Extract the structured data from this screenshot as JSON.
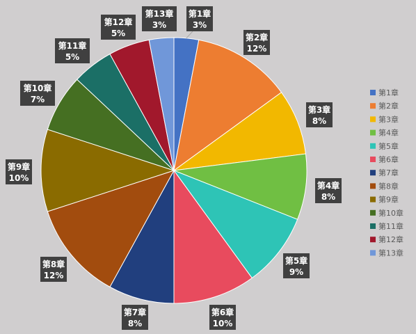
{
  "chart_data": {
    "type": "pie",
    "title": "",
    "categories": [
      "第1章",
      "第2章",
      "第3章",
      "第4章",
      "第5章",
      "第6章",
      "第7章",
      "第8章",
      "第9章",
      "第10章",
      "第11章",
      "第12章",
      "第13章"
    ],
    "values": [
      3,
      12,
      8,
      8,
      9,
      10,
      8,
      12,
      10,
      7,
      5,
      5,
      3
    ],
    "value_unit": "%",
    "colors": [
      "#4472c4",
      "#ed7d31",
      "#f2b800",
      "#70bf43",
      "#2ec4b6",
      "#e84b5e",
      "#213f7e",
      "#a24c0e",
      "#8a6b00",
      "#456f22",
      "#1b6f66",
      "#a1182c",
      "#7097d9"
    ],
    "legend_position": "right",
    "background": "#d0cecf"
  }
}
